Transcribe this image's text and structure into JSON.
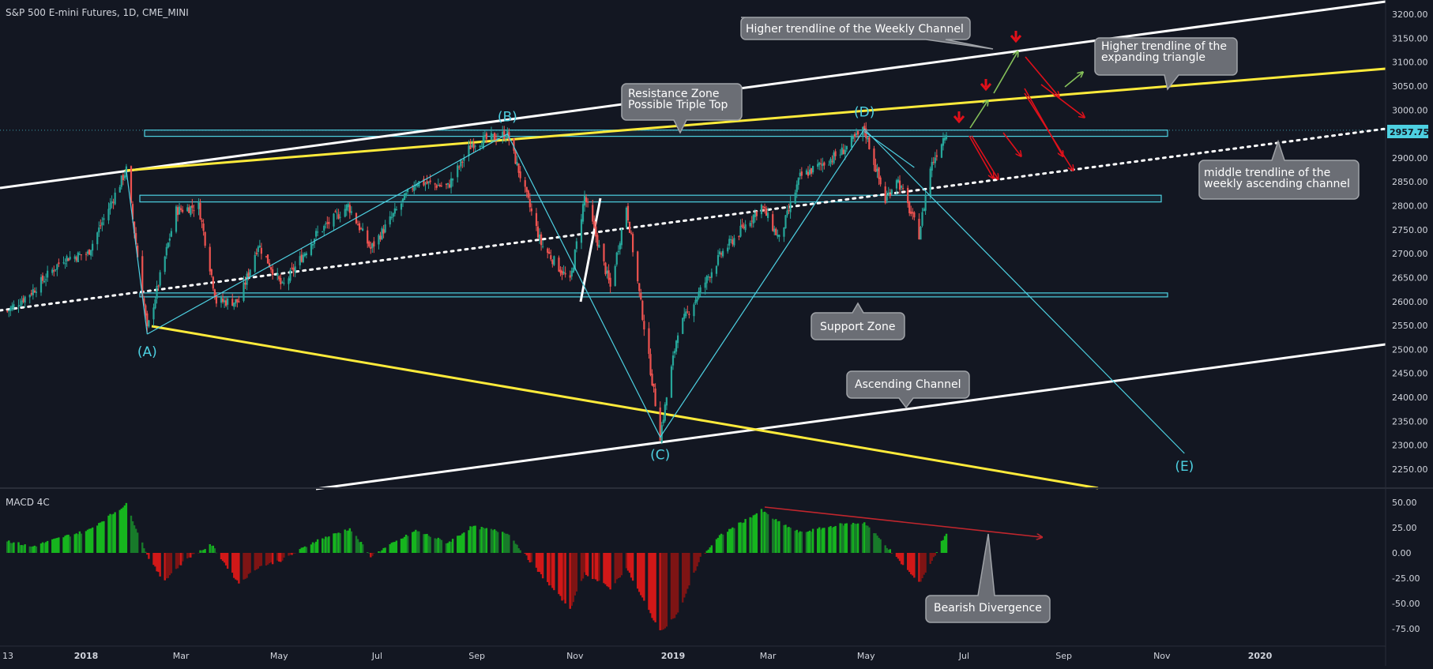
{
  "header": {
    "symbol_title": "S&P 500 E-mini Futures, 1D, CME_MINI",
    "indicator_title": "MACD 4C"
  },
  "colors": {
    "background": "#131722",
    "axis_text": "#d1d4dc",
    "up_candle": "#26a69a",
    "down_candle": "#ef5350",
    "cyan": "#4dd0e1",
    "yellow": "#ffeb3b",
    "white": "#ffffff",
    "macd_green": "#16b51e",
    "macd_dark_green": "#187a2a",
    "macd_red": "#d11818",
    "macd_dark_red": "#7e1414",
    "callout_fill": "#6b6e75",
    "down_arrow": "#e0101a",
    "up_arrow": "#86c25a"
  },
  "chart_data": [
    {
      "type": "candlestick",
      "ylim": [
        2210,
        3240
      ],
      "price_ticks": [
        "3200.00",
        "3150.00",
        "3100.00",
        "3050.00",
        "3000.00",
        "2950.00",
        "2900.00",
        "2850.00",
        "2800.00",
        "2750.00",
        "2700.00",
        "2650.00",
        "2600.00",
        "2550.00",
        "2500.00",
        "2450.00",
        "2400.00",
        "2350.00",
        "2300.00",
        "2250.00"
      ],
      "last_price_label": "2957.75",
      "last_price": 2957.75,
      "time_ticks": [
        "13",
        "2018",
        "Mar",
        "May",
        "Jul",
        "Sep",
        "Nov",
        "2019",
        "Mar",
        "May",
        "Jul",
        "Sep",
        "Nov",
        "2020"
      ],
      "price_path": [
        {
          "date": "2017-11-13",
          "close": 2580
        },
        {
          "date": "2017-11-28",
          "close": 2620
        },
        {
          "date": "2017-12-18",
          "close": 2690
        },
        {
          "date": "2018-01-02",
          "close": 2700
        },
        {
          "date": "2018-01-26",
          "close": 2875
        },
        {
          "date": "2018-02-08",
          "close": 2540
        },
        {
          "date": "2018-02-26",
          "close": 2790
        },
        {
          "date": "2018-03-12",
          "close": 2800
        },
        {
          "date": "2018-03-23",
          "close": 2600
        },
        {
          "date": "2018-04-06",
          "close": 2600
        },
        {
          "date": "2018-04-18",
          "close": 2720
        },
        {
          "date": "2018-05-03",
          "close": 2630
        },
        {
          "date": "2018-05-24",
          "close": 2740
        },
        {
          "date": "2018-06-13",
          "close": 2800
        },
        {
          "date": "2018-06-27",
          "close": 2710
        },
        {
          "date": "2018-07-25",
          "close": 2850
        },
        {
          "date": "2018-08-14",
          "close": 2840
        },
        {
          "date": "2018-08-29",
          "close": 2930
        },
        {
          "date": "2018-09-20",
          "close": 2950
        },
        {
          "date": "2018-10-11",
          "close": 2720
        },
        {
          "date": "2018-10-29",
          "close": 2640
        },
        {
          "date": "2018-11-07",
          "close": 2820
        },
        {
          "date": "2018-11-23",
          "close": 2630
        },
        {
          "date": "2018-12-03",
          "close": 2800
        },
        {
          "date": "2018-12-24",
          "close": 2320
        },
        {
          "date": "2019-01-04",
          "close": 2540
        },
        {
          "date": "2019-01-31",
          "close": 2700
        },
        {
          "date": "2019-02-25",
          "close": 2800
        },
        {
          "date": "2019-03-08",
          "close": 2730
        },
        {
          "date": "2019-03-21",
          "close": 2860
        },
        {
          "date": "2019-04-15",
          "close": 2910
        },
        {
          "date": "2019-04-30",
          "close": 2960
        },
        {
          "date": "2019-05-13",
          "close": 2810
        },
        {
          "date": "2019-05-20",
          "close": 2860
        },
        {
          "date": "2019-06-03",
          "close": 2740
        },
        {
          "date": "2019-06-10",
          "close": 2880
        },
        {
          "date": "2019-06-20",
          "close": 2957.75
        }
      ],
      "zones": [
        {
          "name": "Resistance Zone",
          "low": 2945,
          "high": 2958
        },
        {
          "name": "Middle Zone",
          "low": 2808,
          "high": 2822
        },
        {
          "name": "Support Zone",
          "low": 2610,
          "high": 2618
        }
      ],
      "wave_points": [
        {
          "label": "(A)",
          "date": "2018-02-08",
          "price": 2532
        },
        {
          "label": "(B)",
          "date": "2018-09-20",
          "price": 2950
        },
        {
          "label": "(C)",
          "date": "2018-12-24",
          "price": 2317
        },
        {
          "label": "(D)",
          "date": "2019-04-30",
          "price": 2960
        },
        {
          "label": "(E)",
          "date": "2019-11-15",
          "price": 2283
        }
      ],
      "annotations": [
        "Higher trendline of the Weekly Channel",
        "Higher trendline of the expanding triangle",
        "Resistance Zone Possible Triple Top",
        "middle trendline of the weekly ascending channel",
        "Support Zone",
        "Ascending Channel"
      ]
    },
    {
      "type": "histogram",
      "title": "MACD 4C",
      "ylim": [
        -85,
        60
      ],
      "value_ticks": [
        "50.00",
        "25.00",
        "0.00",
        "-25.00",
        "-50.00",
        "-75.00"
      ],
      "histogram_path": [
        {
          "date": "2017-11-13",
          "value": 12
        },
        {
          "date": "2017-11-28",
          "value": 6
        },
        {
          "date": "2017-12-18",
          "value": 16
        },
        {
          "date": "2018-01-02",
          "value": 22
        },
        {
          "date": "2018-01-26",
          "value": 48
        },
        {
          "date": "2018-02-08",
          "value": -2
        },
        {
          "date": "2018-02-18",
          "value": -28
        },
        {
          "date": "2018-03-05",
          "value": -5
        },
        {
          "date": "2018-03-20",
          "value": 8
        },
        {
          "date": "2018-04-06",
          "value": -30
        },
        {
          "date": "2018-04-18",
          "value": -14
        },
        {
          "date": "2018-05-03",
          "value": -7
        },
        {
          "date": "2018-05-24",
          "value": 12
        },
        {
          "date": "2018-06-14",
          "value": 24
        },
        {
          "date": "2018-06-27",
          "value": -3
        },
        {
          "date": "2018-07-25",
          "value": 22
        },
        {
          "date": "2018-08-14",
          "value": 10
        },
        {
          "date": "2018-08-29",
          "value": 26
        },
        {
          "date": "2018-09-20",
          "value": 20
        },
        {
          "date": "2018-10-11",
          "value": -22
        },
        {
          "date": "2018-10-29",
          "value": -55
        },
        {
          "date": "2018-11-07",
          "value": -20
        },
        {
          "date": "2018-11-23",
          "value": -35
        },
        {
          "date": "2018-12-03",
          "value": -15
        },
        {
          "date": "2018-12-24",
          "value": -78
        },
        {
          "date": "2019-01-04",
          "value": -60
        },
        {
          "date": "2019-01-18",
          "value": -5
        },
        {
          "date": "2019-01-31",
          "value": 18
        },
        {
          "date": "2019-02-25",
          "value": 42
        },
        {
          "date": "2019-03-08",
          "value": 30
        },
        {
          "date": "2019-03-21",
          "value": 20
        },
        {
          "date": "2019-04-15",
          "value": 28
        },
        {
          "date": "2019-04-30",
          "value": 30
        },
        {
          "date": "2019-05-13",
          "value": 8
        },
        {
          "date": "2019-05-20",
          "value": -5
        },
        {
          "date": "2019-06-03",
          "value": -30
        },
        {
          "date": "2019-06-12",
          "value": -5
        },
        {
          "date": "2019-06-20",
          "value": 20
        }
      ],
      "annotations": [
        "Bearish Divergence"
      ]
    }
  ]
}
